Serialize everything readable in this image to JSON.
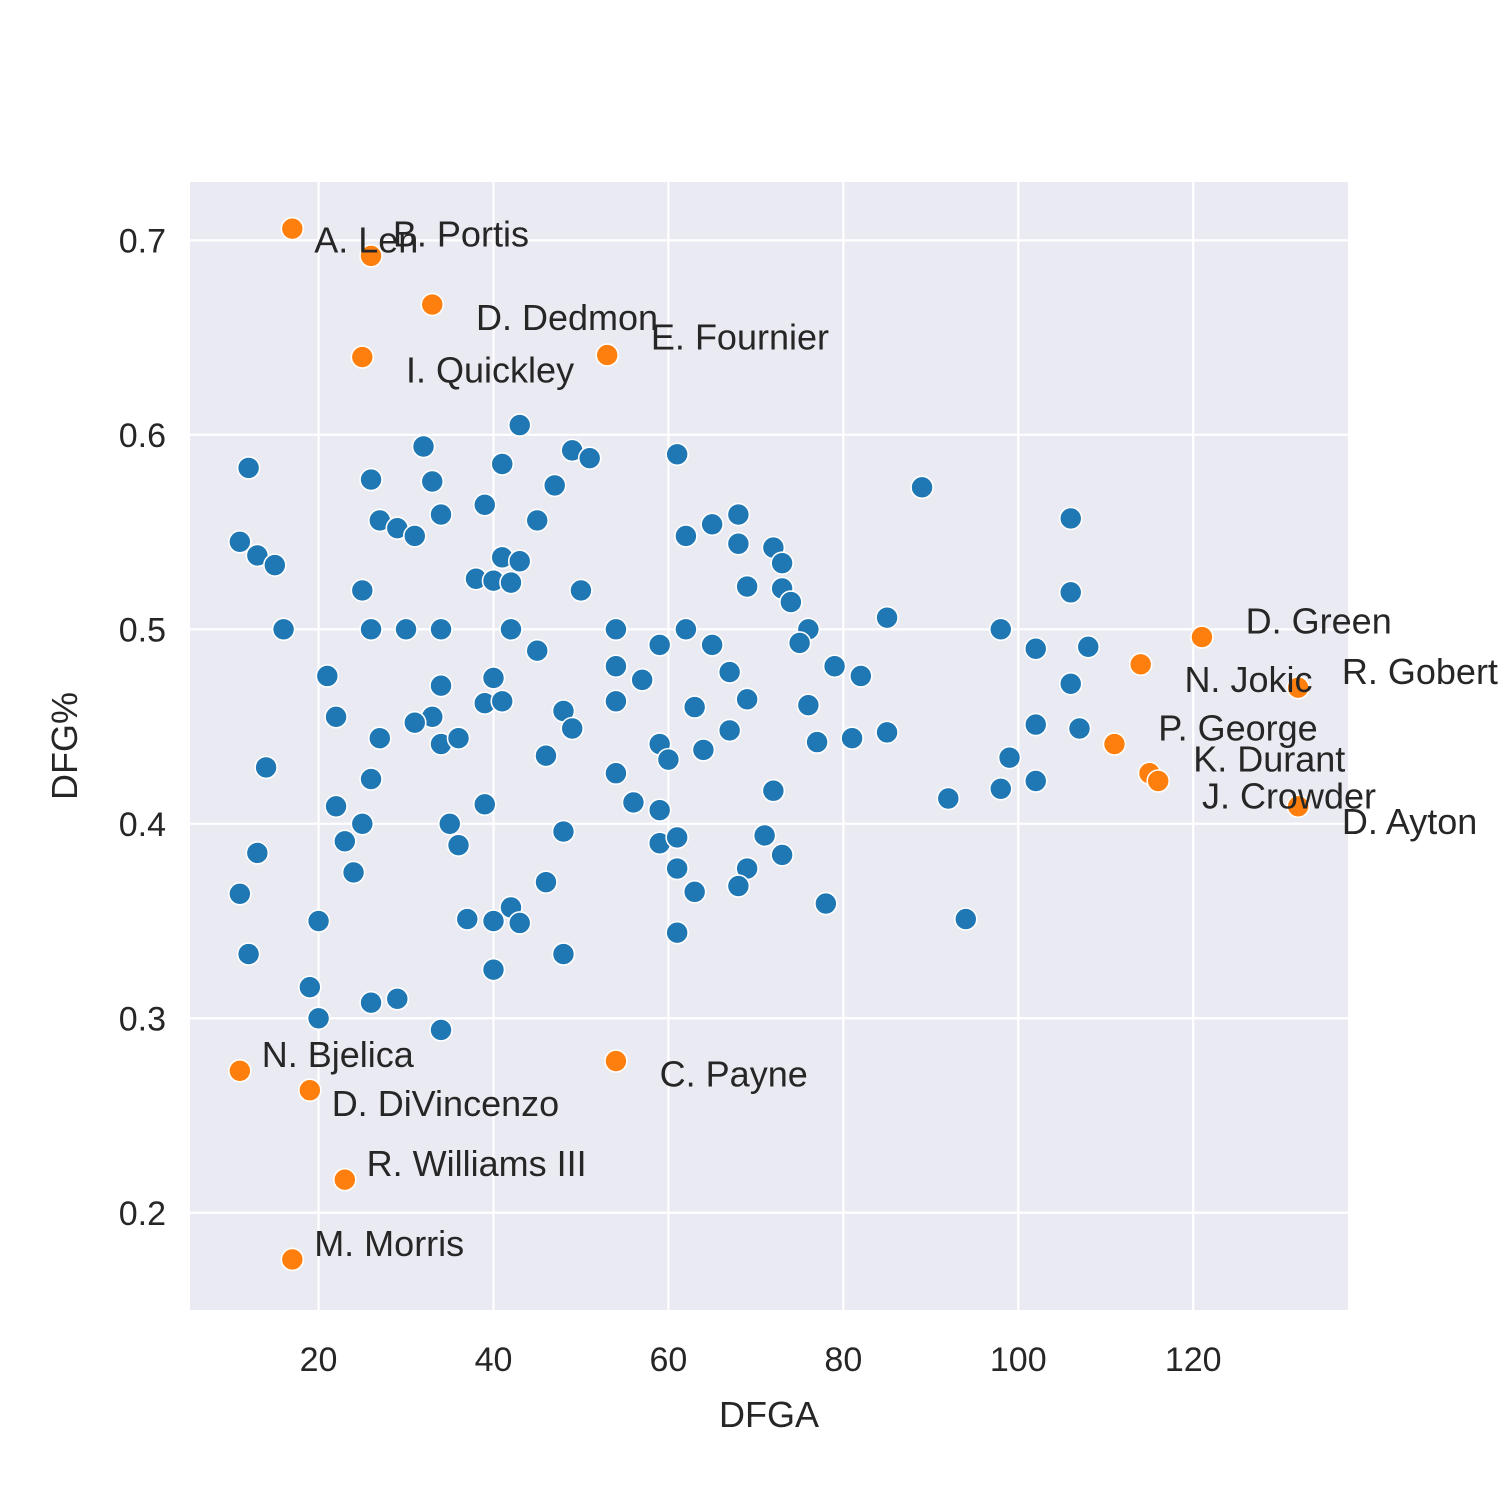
{
  "chart_data": {
    "type": "scatter",
    "title": "",
    "xlabel": "DFGA",
    "ylabel": "DFG%",
    "xlim": [
      5.3,
      137.7
    ],
    "ylim": [
      0.15,
      0.73
    ],
    "x_ticks": [
      20,
      40,
      60,
      80,
      100,
      120
    ],
    "x_tick_labels": [
      "20",
      "40",
      "60",
      "80",
      "100",
      "120"
    ],
    "y_ticks": [
      0.2,
      0.3,
      0.4,
      0.5,
      0.6,
      0.7
    ],
    "y_tick_labels": [
      "0.2",
      "0.3",
      "0.4",
      "0.5",
      "0.6",
      "0.7"
    ],
    "grid": true,
    "colors": {
      "background": "#eaeaf2",
      "grid": "#ffffff",
      "base": "#1f77b4",
      "highlight": "#ff7f0e",
      "edge": "#ffffff"
    },
    "series": [
      {
        "color": "#1f77b4",
        "points": [
          [
            12,
            0.583
          ],
          [
            11,
            0.545
          ],
          [
            13,
            0.538
          ],
          [
            15,
            0.533
          ],
          [
            16,
            0.5
          ],
          [
            14,
            0.429
          ],
          [
            13,
            0.385
          ],
          [
            11,
            0.364
          ],
          [
            12,
            0.333
          ],
          [
            21,
            0.476
          ],
          [
            22,
            0.455
          ],
          [
            22,
            0.409
          ],
          [
            23,
            0.391
          ],
          [
            24,
            0.375
          ],
          [
            20,
            0.35
          ],
          [
            19,
            0.316
          ],
          [
            20,
            0.3
          ],
          [
            26,
            0.577
          ],
          [
            27,
            0.556
          ],
          [
            29,
            0.552
          ],
          [
            31,
            0.548
          ],
          [
            25,
            0.52
          ],
          [
            26,
            0.5
          ],
          [
            30,
            0.5
          ],
          [
            27,
            0.444
          ],
          [
            26,
            0.423
          ],
          [
            25,
            0.4
          ],
          [
            26,
            0.308
          ],
          [
            29,
            0.31
          ],
          [
            32,
            0.594
          ],
          [
            33,
            0.576
          ],
          [
            34,
            0.559
          ],
          [
            34,
            0.5
          ],
          [
            34,
            0.471
          ],
          [
            33,
            0.455
          ],
          [
            31,
            0.452
          ],
          [
            34,
            0.441
          ],
          [
            36,
            0.444
          ],
          [
            35,
            0.4
          ],
          [
            36,
            0.389
          ],
          [
            37,
            0.351
          ],
          [
            34,
            0.294
          ],
          [
            43,
            0.605
          ],
          [
            41,
            0.585
          ],
          [
            39,
            0.564
          ],
          [
            41,
            0.537
          ],
          [
            43,
            0.535
          ],
          [
            38,
            0.526
          ],
          [
            40,
            0.525
          ],
          [
            42,
            0.524
          ],
          [
            42,
            0.5
          ],
          [
            40,
            0.475
          ],
          [
            39,
            0.462
          ],
          [
            41,
            0.463
          ],
          [
            39,
            0.41
          ],
          [
            42,
            0.357
          ],
          [
            40,
            0.35
          ],
          [
            43,
            0.349
          ],
          [
            40,
            0.325
          ],
          [
            49,
            0.592
          ],
          [
            51,
            0.588
          ],
          [
            47,
            0.574
          ],
          [
            45,
            0.556
          ],
          [
            50,
            0.52
          ],
          [
            45,
            0.489
          ],
          [
            48,
            0.458
          ],
          [
            49,
            0.449
          ],
          [
            46,
            0.435
          ],
          [
            48,
            0.396
          ],
          [
            46,
            0.37
          ],
          [
            48,
            0.333
          ],
          [
            54,
            0.5
          ],
          [
            54,
            0.481
          ],
          [
            57,
            0.474
          ],
          [
            54,
            0.463
          ],
          [
            54,
            0.426
          ],
          [
            56,
            0.411
          ],
          [
            59,
            0.492
          ],
          [
            59,
            0.441
          ],
          [
            60,
            0.433
          ],
          [
            59,
            0.407
          ],
          [
            59,
            0.39
          ],
          [
            61,
            0.59
          ],
          [
            62,
            0.548
          ],
          [
            62,
            0.5
          ],
          [
            63,
            0.46
          ],
          [
            64,
            0.438
          ],
          [
            61,
            0.393
          ],
          [
            61,
            0.377
          ],
          [
            63,
            0.365
          ],
          [
            61,
            0.344
          ],
          [
            65,
            0.554
          ],
          [
            68,
            0.559
          ],
          [
            68,
            0.544
          ],
          [
            69,
            0.522
          ],
          [
            65,
            0.492
          ],
          [
            67,
            0.478
          ],
          [
            69,
            0.464
          ],
          [
            67,
            0.448
          ],
          [
            69,
            0.377
          ],
          [
            68,
            0.368
          ],
          [
            72,
            0.542
          ],
          [
            73,
            0.534
          ],
          [
            73,
            0.521
          ],
          [
            74,
            0.514
          ],
          [
            76,
            0.5
          ],
          [
            75,
            0.493
          ],
          [
            76,
            0.461
          ],
          [
            77,
            0.442
          ],
          [
            72,
            0.417
          ],
          [
            71,
            0.394
          ],
          [
            73,
            0.384
          ],
          [
            78,
            0.359
          ],
          [
            79,
            0.481
          ],
          [
            82,
            0.476
          ],
          [
            81,
            0.444
          ],
          [
            85,
            0.506
          ],
          [
            85,
            0.447
          ],
          [
            89,
            0.573
          ],
          [
            92,
            0.413
          ],
          [
            94,
            0.351
          ],
          [
            98,
            0.5
          ],
          [
            99,
            0.434
          ],
          [
            98,
            0.418
          ],
          [
            102,
            0.49
          ],
          [
            102,
            0.451
          ],
          [
            102,
            0.422
          ],
          [
            106,
            0.557
          ],
          [
            106,
            0.519
          ],
          [
            106,
            0.472
          ],
          [
            108,
            0.491
          ],
          [
            107,
            0.449
          ]
        ]
      },
      {
        "color": "#ff7f0e",
        "points": [
          [
            17,
            0.706
          ],
          [
            26,
            0.692
          ],
          [
            33,
            0.667
          ],
          [
            25,
            0.64
          ],
          [
            53,
            0.641
          ],
          [
            11,
            0.273
          ],
          [
            19,
            0.263
          ],
          [
            23,
            0.217
          ],
          [
            17,
            0.176
          ],
          [
            54,
            0.278
          ],
          [
            121,
            0.496
          ],
          [
            114,
            0.482
          ],
          [
            132,
            0.47
          ],
          [
            111,
            0.441
          ],
          [
            115,
            0.426
          ],
          [
            116,
            0.422
          ],
          [
            132,
            0.409
          ]
        ]
      }
    ],
    "annotations": [
      {
        "text": "A. Len",
        "x": 19.5,
        "y": 0.7
      },
      {
        "text": "B. Portis",
        "x": 28.5,
        "y": 0.703
      },
      {
        "text": "D. Dedmon",
        "x": 38,
        "y": 0.66
      },
      {
        "text": "I. Quickley",
        "x": 30,
        "y": 0.633
      },
      {
        "text": "E. Fournier",
        "x": 58,
        "y": 0.65
      },
      {
        "text": "N. Bjelica",
        "x": 13.5,
        "y": 0.281
      },
      {
        "text": "D. DiVincenzo",
        "x": 21.5,
        "y": 0.256
      },
      {
        "text": "R. Williams III",
        "x": 25.5,
        "y": 0.225
      },
      {
        "text": "M. Morris",
        "x": 19.5,
        "y": 0.184
      },
      {
        "text": "C. Payne",
        "x": 59,
        "y": 0.271
      },
      {
        "text": "D. Green",
        "x": 126,
        "y": 0.504
      },
      {
        "text": "N. Jokic",
        "x": 119,
        "y": 0.474
      },
      {
        "text": "R. Gobert",
        "x": 137,
        "y": 0.478
      },
      {
        "text": "P. George",
        "x": 116,
        "y": 0.449
      },
      {
        "text": "K. Durant",
        "x": 120,
        "y": 0.433
      },
      {
        "text": "J. Crowder",
        "x": 121,
        "y": 0.414
      },
      {
        "text": "D. Ayton",
        "x": 137,
        "y": 0.401
      }
    ]
  }
}
